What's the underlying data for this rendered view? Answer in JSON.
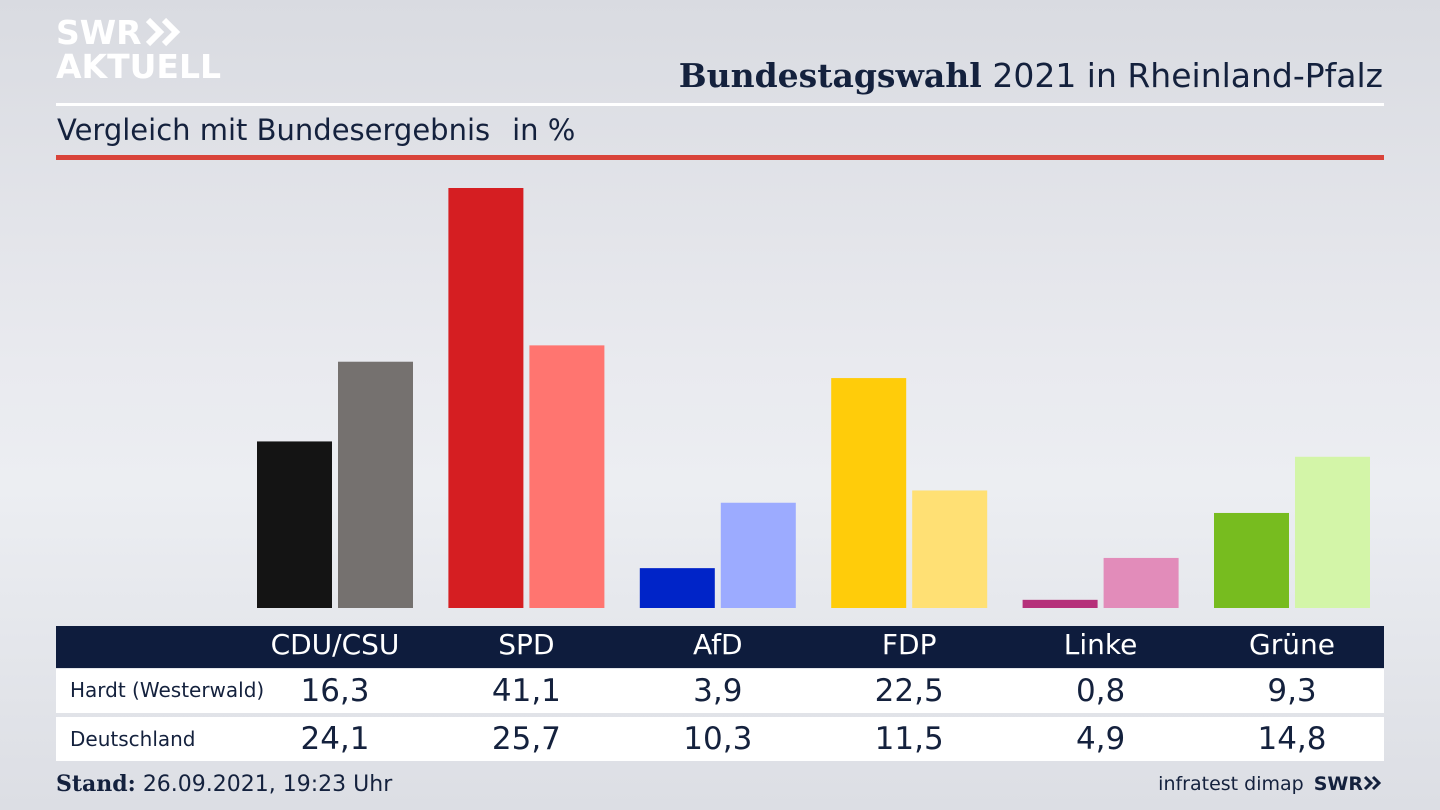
{
  "header": {
    "logo_line1": "SWR",
    "logo_line2": "AKTUELL",
    "title_bold": "Bundestagswahl",
    "title_rest": "2021 in Rheinland-Pfalz",
    "subtitle": "Vergleich mit Bundesergebnis",
    "unit": "in %"
  },
  "chart_data": {
    "type": "bar",
    "categories": [
      "CDU/CSU",
      "SPD",
      "AfD",
      "FDP",
      "Linke",
      "Grüne"
    ],
    "series": [
      {
        "name": "Hardt (Westerwald)",
        "values": [
          16.3,
          41.1,
          3.9,
          22.5,
          0.8,
          9.3
        ],
        "labels": [
          "16,3",
          "41,1",
          "3,9",
          "22,5",
          "0,8",
          "9,3"
        ],
        "colors": [
          "#141414",
          "#d51e22",
          "#0024c8",
          "#ffcc0a",
          "#b5307a",
          "#77bc1f"
        ]
      },
      {
        "name": "Deutschland",
        "values": [
          24.1,
          25.7,
          10.3,
          11.5,
          4.9,
          14.8
        ],
        "labels": [
          "24,1",
          "25,7",
          "10,3",
          "11,5",
          "4,9",
          "14,8"
        ],
        "colors": [
          "#75716f",
          "#ff7570",
          "#9cabff",
          "#ffe074",
          "#e28cba",
          "#d3f5a8"
        ]
      }
    ],
    "ylim": [
      0,
      41.1
    ],
    "grid": false
  },
  "footer": {
    "stand_label": "Stand:",
    "stand_value": "26.09.2021, 19:23 Uhr",
    "source": "infratest dimap",
    "brand": "SWR"
  }
}
